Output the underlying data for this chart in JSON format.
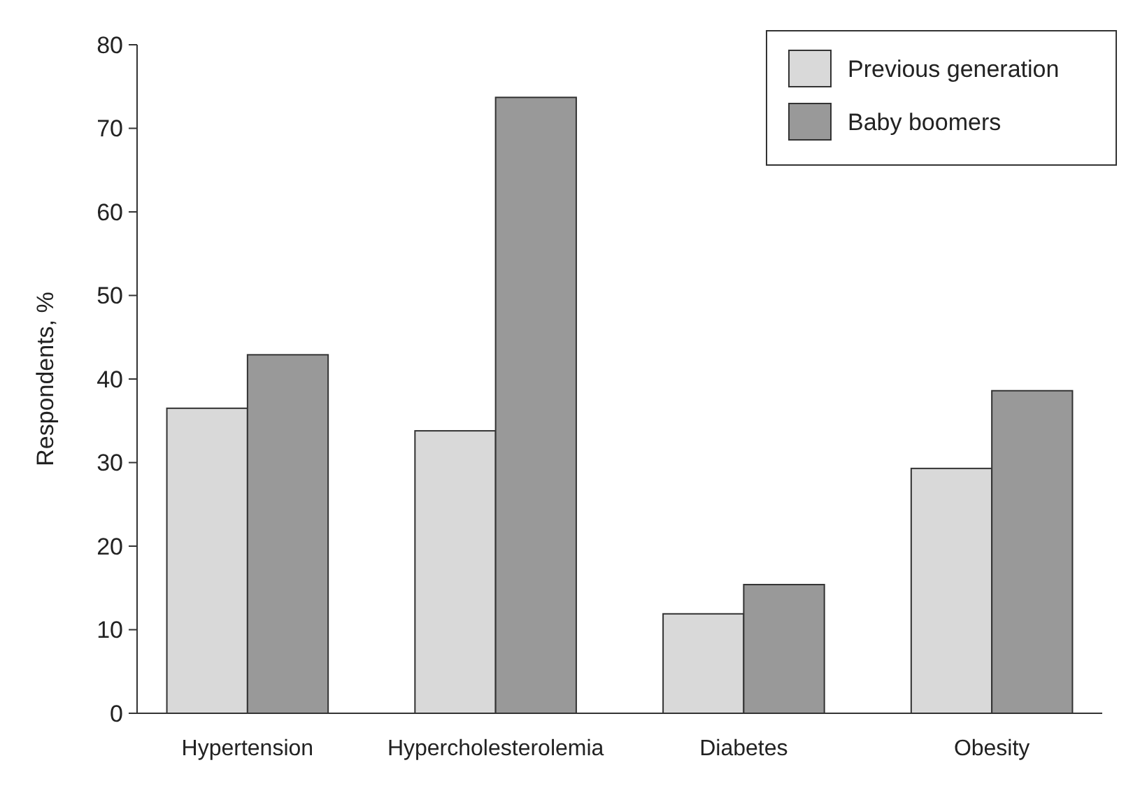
{
  "chart_data": {
    "type": "bar",
    "ylabel": "Respondents, %",
    "categories": [
      "Hypertension",
      "Hypercholesterolemia",
      "Diabetes",
      "Obesity"
    ],
    "series": [
      {
        "name": "Previous generation",
        "color": "#d9d9d9",
        "values": [
          36.5,
          33.8,
          11.9,
          29.3
        ]
      },
      {
        "name": "Baby boomers",
        "color": "#999999",
        "values": [
          42.9,
          73.7,
          15.4,
          38.6
        ]
      }
    ],
    "ylim": [
      0,
      80
    ],
    "yticks": [
      0,
      10,
      20,
      30,
      40,
      50,
      60,
      70,
      80
    ],
    "grid": false,
    "legend": "top right"
  }
}
